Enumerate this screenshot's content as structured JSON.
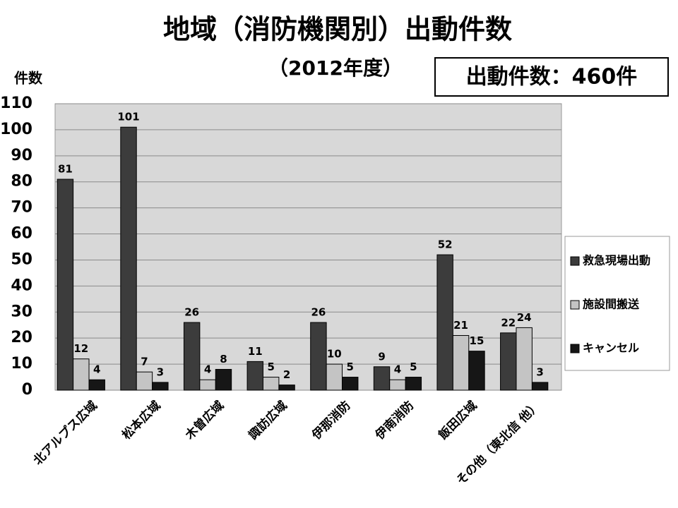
{
  "chart_data": {
    "type": "bar",
    "title": "地域（消防機関別）出動件数",
    "subtitle": "（2012年度）",
    "annotation": "出動件数：460件",
    "y_label": "件数",
    "categories": [
      "北アルプス広域",
      "松本広域",
      "木曽広域",
      "諏訪広域",
      "伊那消防",
      "伊南消防",
      "飯田広域",
      "その他（東北信 他）"
    ],
    "series": [
      {
        "name": "救急現場出動",
        "color": "#3c3c3c",
        "values": [
          81,
          101,
          26,
          11,
          26,
          9,
          52,
          22
        ]
      },
      {
        "name": "施設間搬送",
        "color": "#c4c4c4",
        "values": [
          12,
          7,
          4,
          5,
          10,
          4,
          21,
          24
        ]
      },
      {
        "name": "キャンセル",
        "color": "#161616",
        "values": [
          4,
          3,
          8,
          2,
          5,
          5,
          15,
          3
        ]
      }
    ],
    "ylim": [
      0,
      110
    ],
    "yticks": [
      0,
      10,
      20,
      30,
      40,
      50,
      60,
      70,
      80,
      90,
      100,
      110
    ],
    "grid": true,
    "legend": "right"
  }
}
